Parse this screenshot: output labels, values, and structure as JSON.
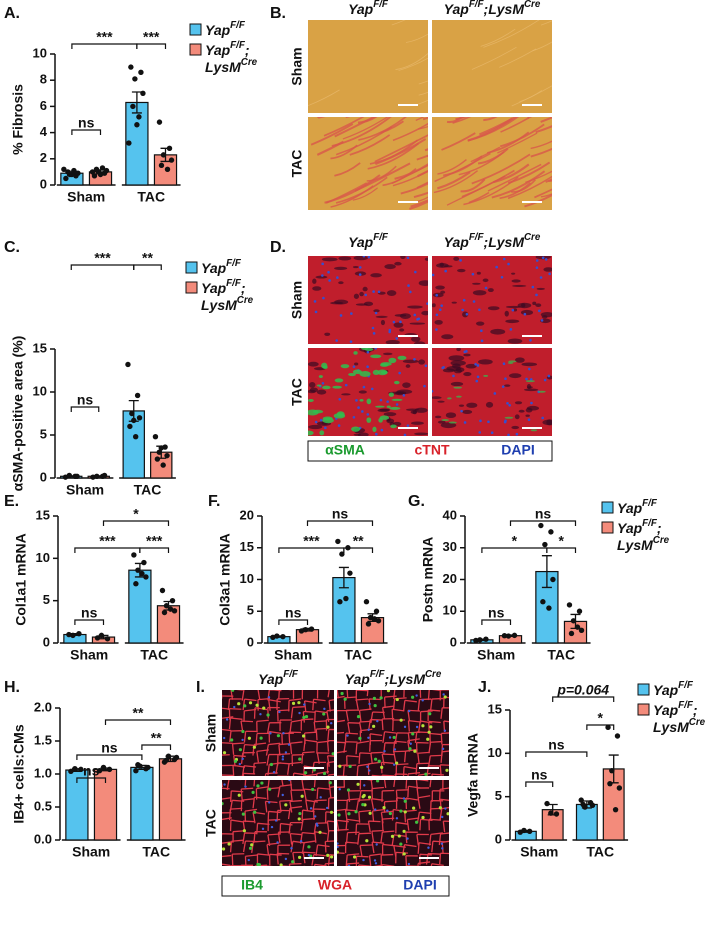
{
  "chart_data": [
    {
      "type": "bar",
      "panel_label": "A.",
      "ylabel": "% Fibrosis",
      "categories": [
        "Sham",
        "TAC"
      ],
      "legend": true,
      "ylim": [
        0,
        10
      ],
      "yticks": [
        0,
        2,
        4,
        6,
        8,
        10
      ],
      "annotations": [
        "***",
        "***",
        "ns"
      ],
      "series": [
        {
          "name": [
            [
              "Yap",
              "F/F"
            ]
          ],
          "color": "#55c3ee",
          "values": [
            0.9,
            6.3
          ],
          "errors": [
            0.15,
            0.8
          ],
          "points": [
            [
              0.5,
              0.7,
              0.8,
              0.9,
              1.0,
              1.1,
              0.8,
              1.2
            ],
            [
              9.0,
              8.6,
              8.1,
              7.0,
              6.0,
              5.2,
              4.6,
              3.2
            ]
          ]
        },
        {
          "name": [
            [
              "Yap",
              "F/F",
              ";"
            ],
            [
              "LysM",
              "Cre"
            ]
          ],
          "color": "#f38b7b",
          "values": [
            1.0,
            2.3
          ],
          "errors": [
            0.15,
            0.5
          ],
          "points": [
            [
              0.7,
              0.9,
              1.0,
              1.1,
              1.2,
              1.3,
              0.8,
              1.0
            ],
            [
              4.8,
              2.8,
              2.3,
              1.9,
              1.5,
              1.2
            ]
          ]
        }
      ]
    },
    {
      "type": "bar",
      "panel_label": "C.",
      "ylabel": "αSMA-positive area (%)",
      "categories": [
        "Sham",
        "TAC"
      ],
      "legend": true,
      "ylim": [
        0,
        15
      ],
      "yticks": [
        0,
        5,
        10,
        15
      ],
      "annotations": [
        "***",
        "**",
        "ns"
      ],
      "series": [
        {
          "name": [
            [
              "Yap",
              "F/F"
            ]
          ],
          "color": "#55c3ee",
          "values": [
            0.2,
            7.8
          ],
          "errors": [
            0.05,
            1.2
          ],
          "points": [
            [
              0.1,
              0.2,
              0.3,
              0.2
            ],
            [
              13.2,
              9.6,
              7.5,
              7.0,
              6.0,
              4.8,
              6.7
            ]
          ]
        },
        {
          "name": [
            [
              "Yap",
              "F/F",
              ";"
            ],
            [
              "LysM",
              "Cre"
            ]
          ],
          "color": "#f38b7b",
          "values": [
            0.2,
            3.0
          ],
          "errors": [
            0.05,
            0.7
          ],
          "points": [
            [
              0.1,
              0.2,
              0.2,
              0.3
            ],
            [
              4.8,
              3.6,
              3.0,
              2.6,
              2.2,
              1.5,
              3.5
            ]
          ]
        }
      ]
    },
    {
      "type": "bar",
      "panel_label": "E.",
      "ylabel": "Col1a1 mRNA",
      "categories": [
        "Sham",
        "TAC"
      ],
      "legend": false,
      "ylim": [
        0,
        15
      ],
      "yticks": [
        0,
        5,
        10,
        15
      ],
      "annotations": [
        "*",
        "***",
        "***",
        "ns"
      ],
      "series": [
        {
          "color": "#55c3ee",
          "values": [
            1.0,
            8.6
          ],
          "errors": [
            0.1,
            0.8
          ],
          "points": [
            [
              1.0,
              1.1,
              0.9
            ],
            [
              10.4,
              9.5,
              8.6,
              7.8,
              7.0,
              8.2
            ]
          ]
        },
        {
          "color": "#f38b7b",
          "values": [
            0.7,
            4.4
          ],
          "errors": [
            0.2,
            0.5
          ],
          "points": [
            [
              0.6,
              0.5,
              0.9
            ],
            [
              6.2,
              5.0,
              4.4,
              3.8,
              3.6,
              4.0
            ]
          ]
        }
      ]
    },
    {
      "type": "bar",
      "panel_label": "F.",
      "ylabel": "Col3a1 mRNA",
      "categories": [
        "Sham",
        "TAC"
      ],
      "legend": false,
      "ylim": [
        0,
        20
      ],
      "yticks": [
        0,
        5,
        10,
        15,
        20
      ],
      "annotations": [
        "ns",
        "***",
        "**",
        "ns"
      ],
      "series": [
        {
          "color": "#55c3ee",
          "values": [
            1.0,
            10.3
          ],
          "errors": [
            0.1,
            1.6
          ],
          "points": [
            [
              0.9,
              1.0,
              1.1
            ],
            [
              16,
              15,
              14,
              11,
              6.5,
              7
            ]
          ]
        },
        {
          "color": "#f38b7b",
          "values": [
            2.1,
            4.0
          ],
          "errors": [
            0.2,
            0.6
          ],
          "points": [
            [
              1.9,
              2.2,
              2.1
            ],
            [
              6.5,
              5,
              4,
              3.5,
              3,
              3.8
            ]
          ]
        }
      ]
    },
    {
      "type": "bar",
      "panel_label": "G.",
      "ylabel": "Postn mRNA",
      "categories": [
        "Sham",
        "TAC"
      ],
      "legend": true,
      "ylim": [
        0,
        40
      ],
      "yticks": [
        0,
        10,
        20,
        30,
        40
      ],
      "annotations": [
        "ns",
        "*",
        "*",
        "ns"
      ],
      "series": [
        {
          "name": [
            [
              "Yap",
              "F/F"
            ]
          ],
          "color": "#55c3ee",
          "values": [
            1.0,
            22.5
          ],
          "errors": [
            0.2,
            5
          ],
          "points": [
            [
              0.8,
              1.2,
              1.0
            ],
            [
              37,
              35,
              31,
              20,
              13,
              11
            ]
          ]
        },
        {
          "name": [
            [
              "Yap",
              "F/F",
              ";"
            ],
            [
              "LysM",
              "Cre"
            ]
          ],
          "color": "#f38b7b",
          "values": [
            2.3,
            6.8
          ],
          "errors": [
            0.2,
            2.2
          ],
          "points": [
            [
              2.3,
              2.4,
              2.2
            ],
            [
              12,
              10,
              7,
              4,
              3,
              5
            ]
          ]
        }
      ]
    },
    {
      "type": "bar",
      "panel_label": "H.",
      "ylabel": "IB4+ cells:CMs",
      "categories": [
        "Sham",
        "TAC"
      ],
      "legend": false,
      "ylim": [
        0,
        2
      ],
      "yticks": [
        {
          "value": 0,
          "label": "0.0"
        },
        0.5,
        {
          "value": 1,
          "label": "1.0"
        },
        1.5,
        {
          "value": 2,
          "label": "2.0"
        }
      ],
      "annotations": [
        "**",
        "**",
        "ns",
        "ns"
      ],
      "series": [
        {
          "color": "#55c3ee",
          "values": [
            1.06,
            1.1
          ],
          "errors": [
            0.02,
            0.03
          ],
          "points": [
            [
              1.04,
              1.07,
              1.08
            ],
            [
              1.05,
              1.08,
              1.12,
              1.1,
              1.14
            ]
          ]
        },
        {
          "color": "#f38b7b",
          "values": [
            1.07,
            1.23
          ],
          "errors": [
            0.02,
            0.04
          ],
          "points": [
            [
              1.05,
              1.07,
              1.1
            ],
            [
              1.18,
              1.22,
              1.27,
              1.25,
              1.21
            ]
          ]
        }
      ]
    },
    {
      "type": "bar",
      "panel_label": "J.",
      "ylabel": "Vegfa mRNA",
      "categories": [
        "Sham",
        "TAC"
      ],
      "legend": true,
      "ylim": [
        0,
        15
      ],
      "yticks": [
        0,
        5,
        10,
        15
      ],
      "annotations": [
        "p=0.064",
        "*",
        "ns",
        "ns"
      ],
      "series": [
        {
          "name": [
            [
              "Yap",
              "F/F"
            ]
          ],
          "color": "#55c3ee",
          "values": [
            1.0,
            4.1
          ],
          "errors": [
            0.1,
            0.4
          ],
          "points": [
            [
              0.9,
              1.0,
              1.1
            ],
            [
              4.6,
              4.3,
              3.8,
              4.0,
              4.1
            ]
          ]
        },
        {
          "name": [
            [
              "Yap",
              "F/F",
              ";"
            ],
            [
              "LysM",
              "Cre"
            ]
          ],
          "color": "#f38b7b",
          "values": [
            3.5,
            8.2
          ],
          "errors": [
            0.6,
            1.6
          ],
          "points": [
            [
              4.2,
              3.0,
              3.1
            ],
            [
              13,
              12,
              8,
              6,
              6.5,
              3.5
            ]
          ]
        }
      ]
    }
  ],
  "images": [
    {
      "panel_label": "B.",
      "columns": [
        [
          "Yap",
          "F/F"
        ],
        [
          "Yap",
          "F/F",
          ";LysM",
          "Cre"
        ]
      ],
      "rows": [
        "Sham",
        "TAC"
      ]
    },
    {
      "panel_label": "D.",
      "columns": [
        [
          "Yap",
          "F/F"
        ],
        [
          "Yap",
          "F/F",
          ";LysM",
          "Cre"
        ]
      ],
      "rows": [
        "Sham",
        "TAC"
      ],
      "stains": [
        "αSMA",
        "cTNT",
        "DAPI"
      ]
    },
    {
      "panel_label": "I.",
      "columns": [
        [
          "Yap",
          "F/F"
        ],
        [
          "Yap",
          "F/F",
          ";LysM",
          "Cre"
        ]
      ],
      "rows": [
        "Sham",
        "TAC"
      ],
      "stains": [
        "IB4",
        "WGA",
        "DAPI"
      ]
    }
  ]
}
